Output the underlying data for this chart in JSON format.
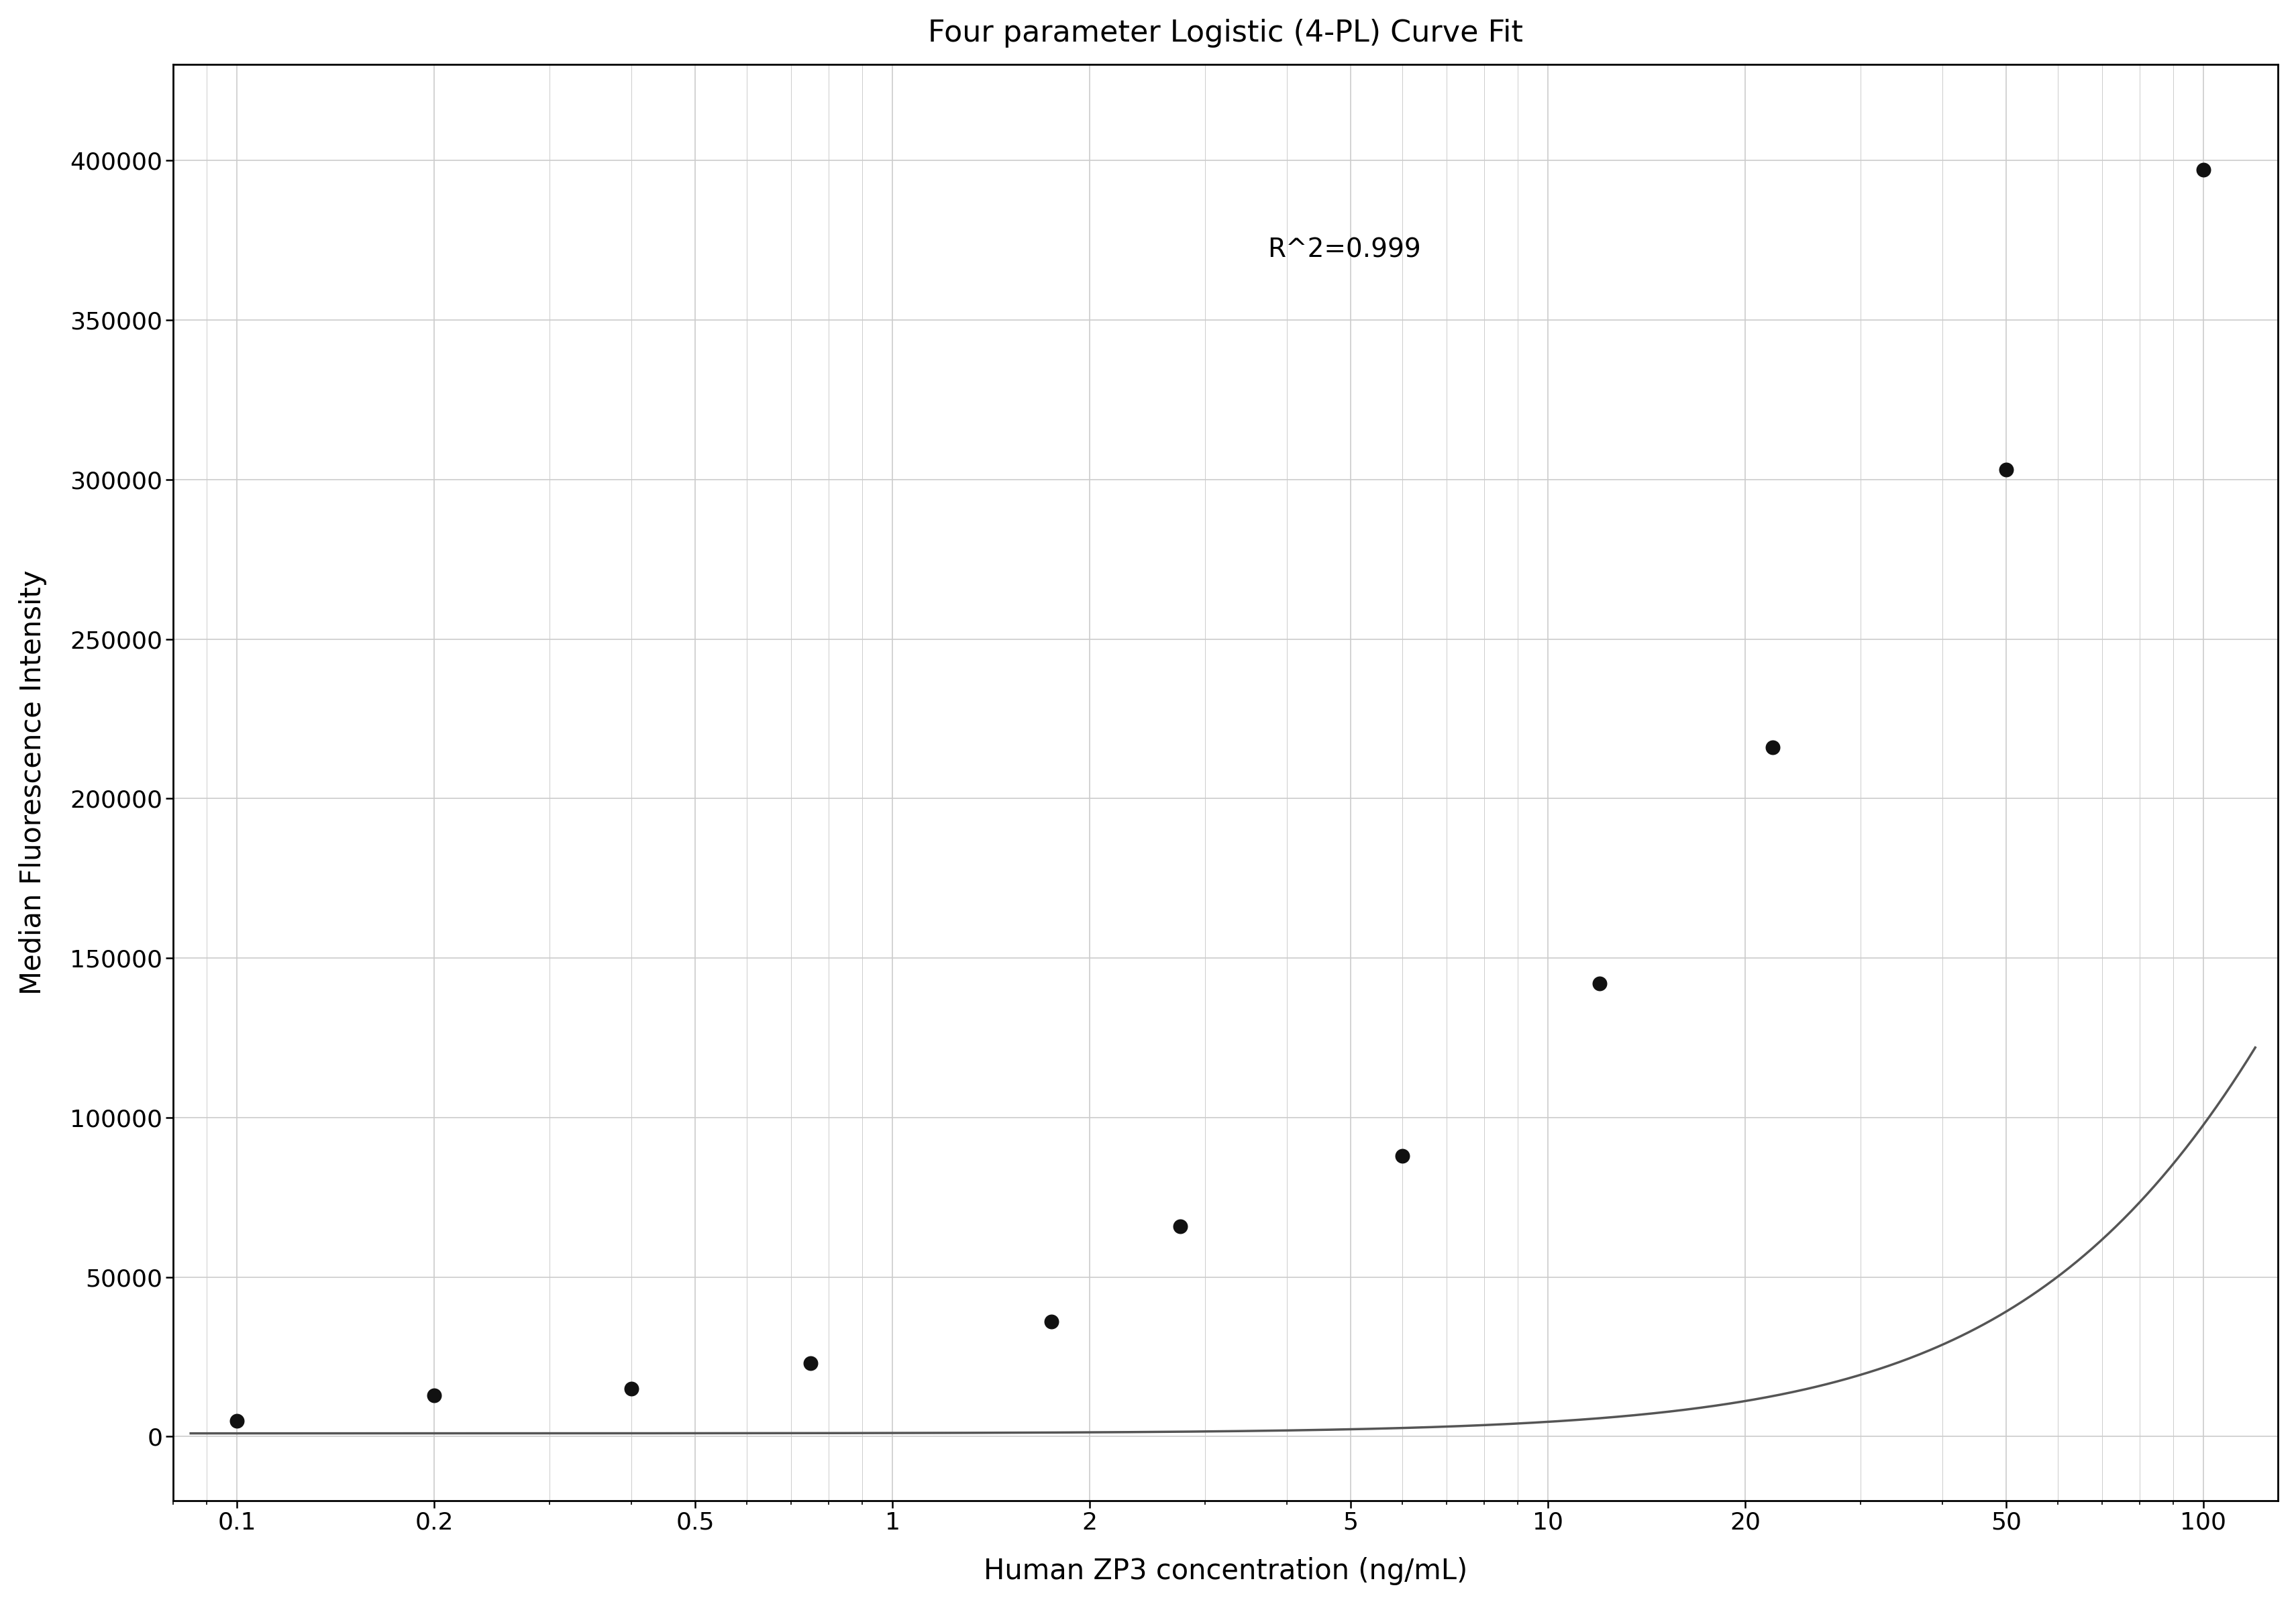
{
  "title": "Four parameter Logistic (4-PL) Curve Fit",
  "xlabel": "Human ZP3 concentration (ng/mL)",
  "ylabel": "Median Fluorescence Intensity",
  "r_squared_text": "R^2=0.999",
  "data_x": [
    0.1,
    0.2,
    0.4,
    0.75,
    1.75,
    2.75,
    6.0,
    12.0,
    22.0,
    50.0,
    100.0
  ],
  "data_y": [
    5000,
    13000,
    15000,
    23000,
    36000,
    66000,
    88000,
    142000,
    216000,
    303000,
    397000
  ],
  "xlim": [
    0.08,
    130
  ],
  "ylim": [
    -20000,
    430000
  ],
  "xtick_labels": [
    "0.1",
    "0.2",
    "0.5",
    "1",
    "2",
    "5",
    "10",
    "20",
    "50",
    "100"
  ],
  "xtick_positions": [
    0.1,
    0.2,
    0.5,
    1,
    2,
    5,
    10,
    20,
    50,
    100
  ],
  "ytick_positions": [
    0,
    50000,
    100000,
    150000,
    200000,
    250000,
    300000,
    350000,
    400000
  ],
  "ytick_labels": [
    "0",
    "50000",
    "100000",
    "150000",
    "200000",
    "250000",
    "300000",
    "350000",
    "400000"
  ],
  "grid_color": "#cccccc",
  "line_color": "#555555",
  "dot_color": "#111111",
  "bg_color": "#ffffff",
  "title_fontsize": 32,
  "label_fontsize": 30,
  "tick_fontsize": 26,
  "annotation_fontsize": 28
}
